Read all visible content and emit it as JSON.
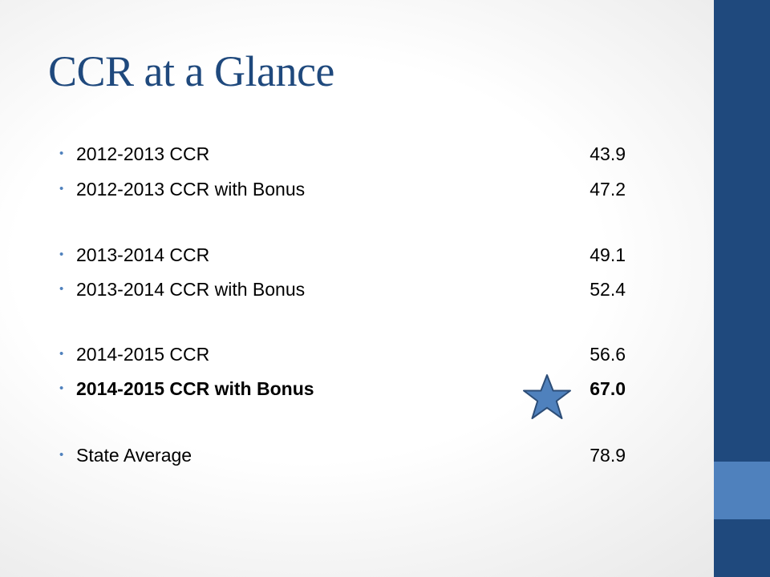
{
  "slide": {
    "title": "CCR at a Glance",
    "bullets": [
      {
        "label": "2012-2013 CCR",
        "value": "43.9"
      },
      {
        "label": "2012-2013 CCR with Bonus",
        "value": "47.2"
      },
      {
        "label": "2013-2014 CCR",
        "value": "49.1"
      },
      {
        "label": "2013-2014 CCR with Bonus",
        "value": "52.4"
      },
      {
        "label": "2014-2015 CCR",
        "value": "56.6"
      },
      {
        "label": "2014-2015 CCR with Bonus",
        "value": "67.0",
        "emphasis": "bold"
      },
      {
        "label": "State Average",
        "value": "78.9"
      }
    ],
    "bullet_glyph": "•",
    "highlight_icon": "star-icon",
    "colors": {
      "title": "#1f497d",
      "bullet": "#4f81bd",
      "sidebar_dark": "#1f497d",
      "sidebar_accent": "#4f81bd",
      "star_fill": "#4f81bd",
      "star_stroke": "#2c4d77"
    }
  }
}
